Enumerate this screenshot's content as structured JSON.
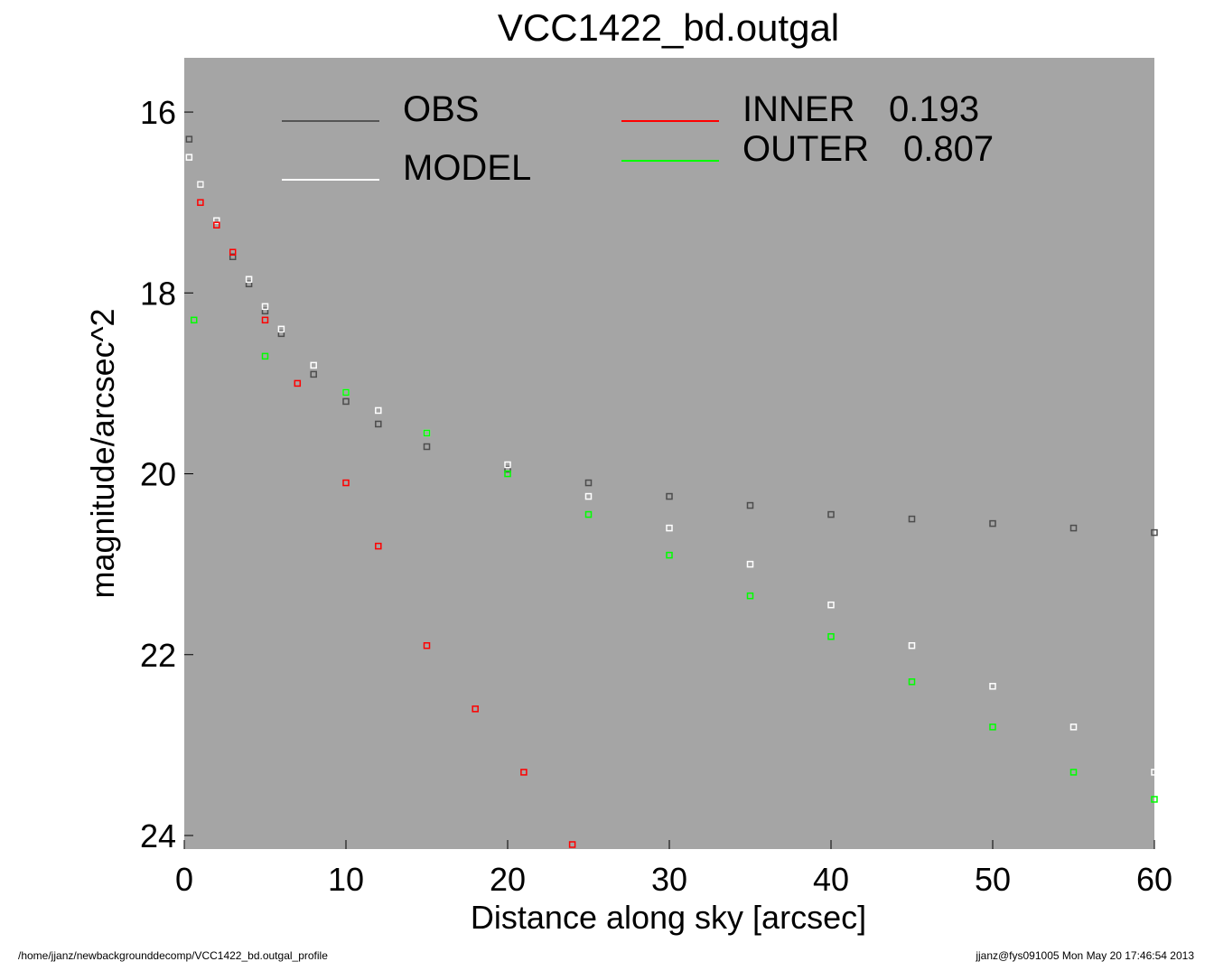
{
  "chart_data": {
    "type": "scatter",
    "title": "VCC1422_bd.outgal",
    "xlabel": "Distance along sky [arcsec]",
    "ylabel": "magnitude/arcsec^2",
    "xlim": [
      0,
      60
    ],
    "ylim": [
      15.4,
      24.15
    ],
    "y_inverted": true,
    "grid": false,
    "background_color": "#a5a5a5",
    "x_ticks": [
      0,
      10,
      20,
      30,
      40,
      50,
      60
    ],
    "y_ticks": [
      16,
      18,
      20,
      22,
      24
    ],
    "legend": [
      {
        "label": "OBS",
        "color": "#555555"
      },
      {
        "label": "MODEL",
        "color": "#ffffff"
      },
      {
        "label": "INNER",
        "value": "0.193",
        "color": "#ff0000"
      },
      {
        "label": "OUTER",
        "value": "0.807",
        "color": "#00ff00"
      }
    ],
    "series": [
      {
        "name": "OBS",
        "color": "#4d4d4d",
        "x": [
          0.3,
          1,
          2,
          3,
          4,
          5,
          6,
          8,
          10,
          12,
          15,
          20,
          25,
          30,
          35,
          40,
          45,
          50,
          55,
          60
        ],
        "y": [
          16.3,
          16.8,
          17.2,
          17.6,
          17.9,
          18.2,
          18.45,
          18.9,
          19.2,
          19.45,
          19.7,
          19.95,
          20.1,
          20.25,
          20.35,
          20.45,
          20.5,
          20.55,
          20.6,
          20.65
        ]
      },
      {
        "name": "MODEL",
        "color": "#ffffff",
        "x": [
          0.3,
          1,
          2,
          3,
          4,
          5,
          6,
          8,
          10,
          12,
          15,
          20,
          25,
          30,
          35,
          40,
          45,
          50,
          55,
          60
        ],
        "y": [
          16.5,
          16.8,
          17.2,
          17.55,
          17.85,
          18.15,
          18.4,
          18.8,
          19.1,
          19.3,
          19.55,
          19.9,
          20.25,
          20.6,
          21.0,
          21.45,
          21.9,
          22.35,
          22.8,
          23.3
        ]
      },
      {
        "name": "INNER",
        "color": "#ff0000",
        "x": [
          1,
          2,
          3,
          5,
          7,
          10,
          12,
          15,
          18,
          21,
          24
        ],
        "y": [
          17.0,
          17.25,
          17.55,
          18.3,
          19.0,
          20.1,
          20.8,
          21.9,
          22.6,
          23.3,
          24.1
        ]
      },
      {
        "name": "OUTER",
        "color": "#00ff00",
        "x": [
          0.6,
          5,
          10,
          15,
          20,
          25,
          30,
          35,
          40,
          45,
          50,
          55,
          60
        ],
        "y": [
          18.3,
          18.7,
          19.1,
          19.55,
          20.0,
          20.45,
          20.9,
          21.35,
          21.8,
          22.3,
          22.8,
          23.3,
          23.6
        ]
      }
    ]
  },
  "footer": {
    "left": "/home/jjanz/newbackgrounddecomp/VCC1422_bd.outgal_profile",
    "right": "jjanz@fys091005  Mon May 20 17:46:54 2013"
  }
}
